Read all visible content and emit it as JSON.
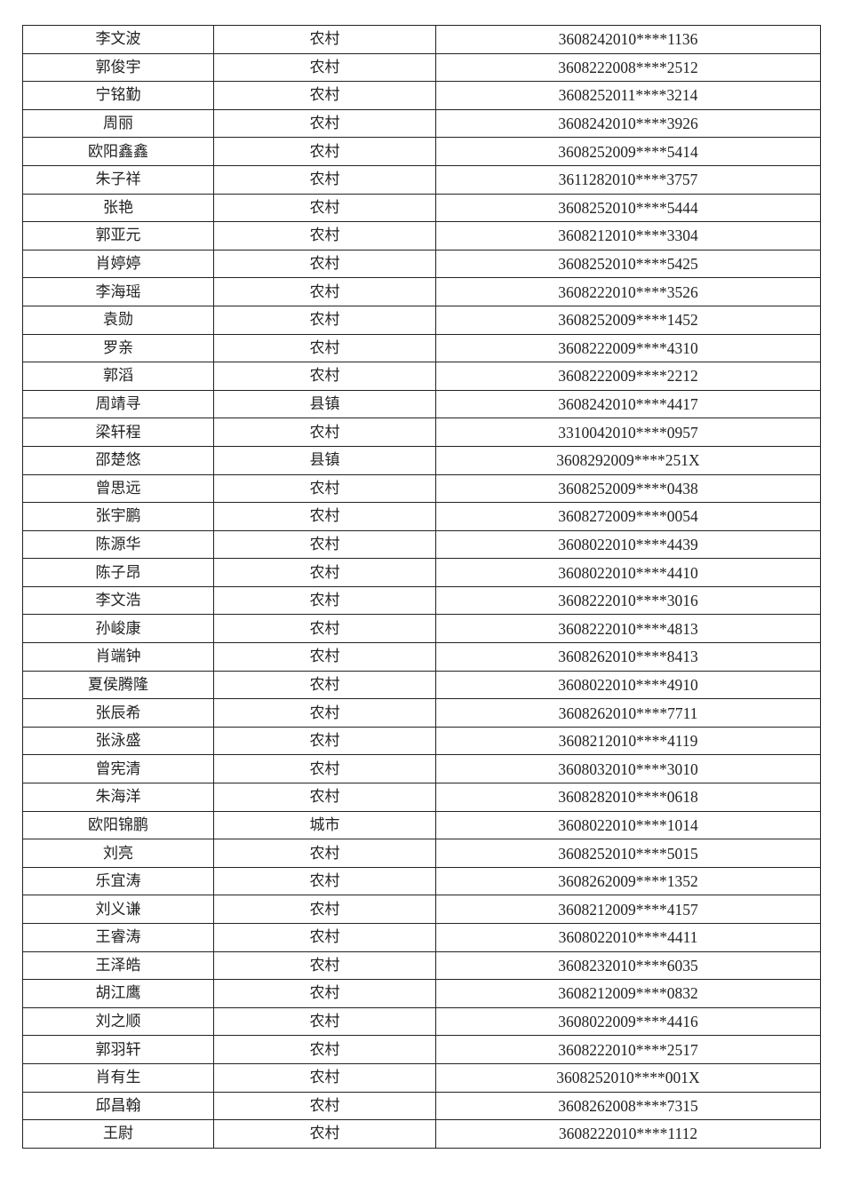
{
  "rows": [
    {
      "name": "李文波",
      "area": "农村",
      "id": "3608242010****1136"
    },
    {
      "name": "郭俊宇",
      "area": "农村",
      "id": "3608222008****2512"
    },
    {
      "name": "宁铭勤",
      "area": "农村",
      "id": "3608252011****3214"
    },
    {
      "name": "周丽",
      "area": "农村",
      "id": "3608242010****3926"
    },
    {
      "name": "欧阳鑫鑫",
      "area": "农村",
      "id": "3608252009****5414"
    },
    {
      "name": "朱子祥",
      "area": "农村",
      "id": "3611282010****3757"
    },
    {
      "name": "张艳",
      "area": "农村",
      "id": "3608252010****5444"
    },
    {
      "name": "郭亚元",
      "area": "农村",
      "id": "3608212010****3304"
    },
    {
      "name": "肖婷婷",
      "area": "农村",
      "id": "3608252010****5425"
    },
    {
      "name": "李海瑶",
      "area": "农村",
      "id": "3608222010****3526"
    },
    {
      "name": "袁勋",
      "area": "农村",
      "id": "3608252009****1452"
    },
    {
      "name": "罗亲",
      "area": "农村",
      "id": "3608222009****4310"
    },
    {
      "name": "郭滔",
      "area": "农村",
      "id": "3608222009****2212"
    },
    {
      "name": "周靖寻",
      "area": "县镇",
      "id": "3608242010****4417"
    },
    {
      "name": "梁轩程",
      "area": "农村",
      "id": "3310042010****0957"
    },
    {
      "name": "邵楚悠",
      "area": "县镇",
      "id": "3608292009****251X"
    },
    {
      "name": "曾思远",
      "area": "农村",
      "id": "3608252009****0438"
    },
    {
      "name": "张宇鹏",
      "area": "农村",
      "id": "3608272009****0054"
    },
    {
      "name": "陈源华",
      "area": "农村",
      "id": "3608022010****4439"
    },
    {
      "name": "陈子昂",
      "area": "农村",
      "id": "3608022010****4410"
    },
    {
      "name": "李文浩",
      "area": "农村",
      "id": "3608222010****3016"
    },
    {
      "name": "孙峻康",
      "area": "农村",
      "id": "3608222010****4813"
    },
    {
      "name": "肖端钟",
      "area": "农村",
      "id": "3608262010****8413"
    },
    {
      "name": "夏侯腾隆",
      "area": "农村",
      "id": "3608022010****4910"
    },
    {
      "name": "张辰希",
      "area": "农村",
      "id": "3608262010****7711"
    },
    {
      "name": "张泳盛",
      "area": "农村",
      "id": "3608212010****4119"
    },
    {
      "name": "曾宪清",
      "area": "农村",
      "id": "3608032010****3010"
    },
    {
      "name": "朱海洋",
      "area": "农村",
      "id": "3608282010****0618"
    },
    {
      "name": "欧阳锦鹏",
      "area": "城市",
      "id": "3608022010****1014"
    },
    {
      "name": "刘亮",
      "area": "农村",
      "id": "3608252010****5015"
    },
    {
      "name": "乐宜涛",
      "area": "农村",
      "id": "3608262009****1352"
    },
    {
      "name": "刘义谦",
      "area": "农村",
      "id": "3608212009****4157"
    },
    {
      "name": "王睿涛",
      "area": "农村",
      "id": "3608022010****4411"
    },
    {
      "name": "王泽皓",
      "area": "农村",
      "id": "3608232010****6035"
    },
    {
      "name": "胡江鹰",
      "area": "农村",
      "id": "3608212009****0832"
    },
    {
      "name": "刘之顺",
      "area": "农村",
      "id": "3608022009****4416"
    },
    {
      "name": "郭羽轩",
      "area": "农村",
      "id": "3608222010****2517"
    },
    {
      "name": "肖有生",
      "area": "农村",
      "id": "3608252010****001X"
    },
    {
      "name": "邱昌翰",
      "area": "农村",
      "id": "3608262008****7315"
    },
    {
      "name": "王尉",
      "area": "农村",
      "id": "3608222010****1112"
    }
  ]
}
